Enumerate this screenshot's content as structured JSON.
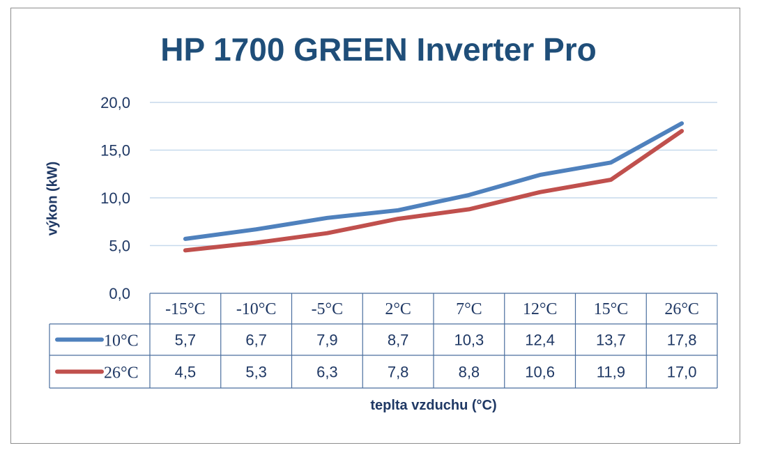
{
  "chart_data": {
    "type": "line",
    "title": "HP 1700 GREEN Inverter Pro",
    "xlabel": "teplta vzduchu (°C)",
    "ylabel": "výkon (kW)",
    "categories": [
      "-15°C",
      "-10°C",
      "-5°C",
      "2°C",
      "7°C",
      "12°C",
      "15°C",
      "26°C"
    ],
    "ylim": [
      0,
      20
    ],
    "yticks": [
      "0,0",
      "5,0",
      "10,0",
      "15,0",
      "20,0"
    ],
    "grid": true,
    "legend": "data-table",
    "series": [
      {
        "name": "10°C",
        "color": "#4f81bd",
        "values": [
          5.7,
          6.7,
          7.9,
          8.7,
          10.3,
          12.4,
          13.7,
          17.8
        ],
        "labels": [
          "5,7",
          "6,7",
          "7,9",
          "8,7",
          "10,3",
          "12,4",
          "13,7",
          "17,8"
        ]
      },
      {
        "name": "26°C",
        "color": "#c0504d",
        "values": [
          4.5,
          5.3,
          6.3,
          7.8,
          8.8,
          10.6,
          11.9,
          17.0
        ],
        "labels": [
          "4,5",
          "5,3",
          "6,3",
          "7,8",
          "8,8",
          "10,6",
          "11,9",
          "17,0"
        ]
      }
    ]
  }
}
